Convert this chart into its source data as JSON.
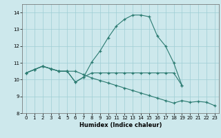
{
  "xlabel": "Humidex (Indice chaleur)",
  "bg_color": "#cde8ec",
  "grid_color": "#9ecdd4",
  "line_color": "#2a7a70",
  "ylim": [
    8.0,
    14.5
  ],
  "xlim": [
    -0.5,
    23.5
  ],
  "yticks": [
    8,
    9,
    10,
    11,
    12,
    13,
    14
  ],
  "xticks": [
    0,
    1,
    2,
    3,
    4,
    5,
    6,
    7,
    8,
    9,
    10,
    11,
    12,
    13,
    14,
    15,
    16,
    17,
    18,
    19,
    20,
    21,
    22,
    23
  ],
  "series1_x": [
    0,
    1,
    2,
    3,
    4,
    5,
    6,
    7,
    8,
    9,
    10,
    11,
    12,
    13,
    14,
    15,
    16,
    17,
    18,
    19,
    20,
    21,
    22,
    23
  ],
  "series1_y": [
    10.4,
    10.6,
    10.8,
    10.65,
    10.5,
    10.5,
    10.5,
    10.3,
    10.1,
    9.95,
    9.8,
    9.65,
    9.5,
    9.35,
    9.2,
    9.05,
    8.9,
    8.75,
    8.6,
    8.75,
    8.65,
    8.7,
    8.65,
    8.45
  ],
  "series2_x": [
    0,
    1,
    2,
    3,
    4,
    5,
    6,
    7,
    8,
    9,
    10,
    11,
    12,
    13,
    14,
    15,
    16,
    17,
    18,
    19
  ],
  "series2_y": [
    10.4,
    10.6,
    10.8,
    10.65,
    10.5,
    10.5,
    9.85,
    10.15,
    10.4,
    10.4,
    10.4,
    10.4,
    10.4,
    10.4,
    10.4,
    10.4,
    10.4,
    10.4,
    10.4,
    9.65
  ],
  "series3_x": [
    0,
    1,
    2,
    3,
    4,
    5,
    6,
    7,
    8,
    9,
    10,
    11,
    12,
    13,
    14,
    15,
    16,
    17,
    18,
    19
  ],
  "series3_y": [
    10.4,
    10.6,
    10.8,
    10.65,
    10.5,
    10.5,
    9.85,
    10.15,
    11.05,
    11.7,
    12.5,
    13.2,
    13.6,
    13.85,
    13.85,
    13.75,
    12.6,
    12.0,
    11.0,
    9.65
  ]
}
